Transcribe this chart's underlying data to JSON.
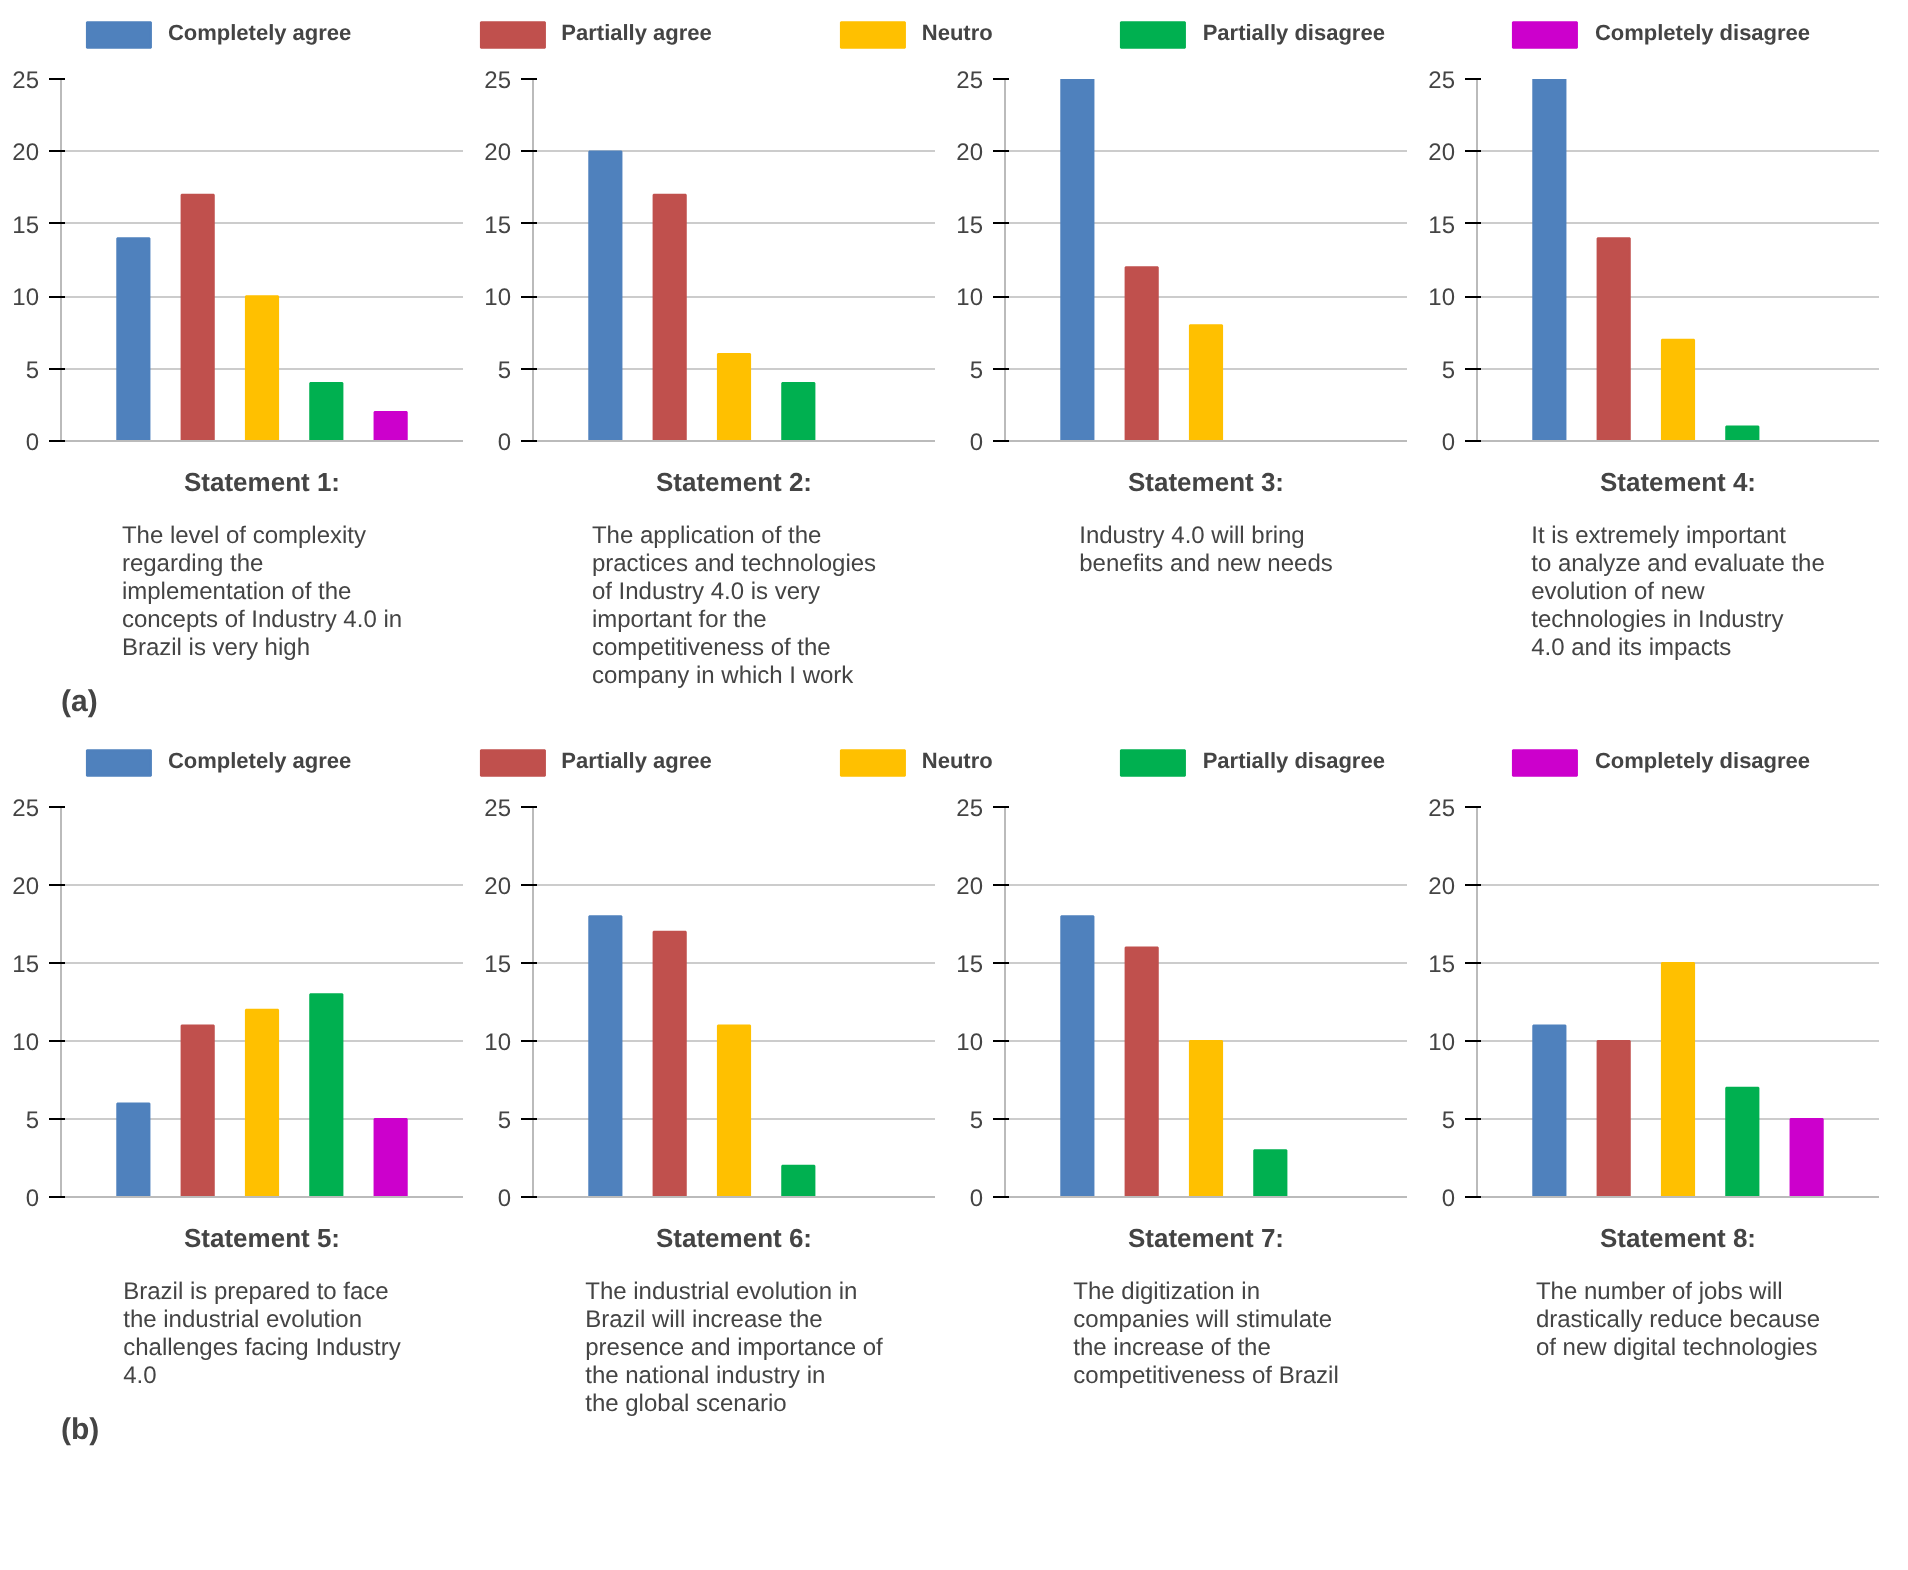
{
  "chart_data": [
    {
      "type": "bar",
      "title": "Statement 1:",
      "subtitle": "The level of complexity regarding the implementation of the concepts of Industry 4.0 in Brazil is very high",
      "categories": [
        null
      ],
      "legend": "top",
      "grid": "y",
      "ylim": [
        0,
        25
      ],
      "yticks": [
        0,
        5,
        10,
        15,
        20,
        25
      ],
      "annotations": [
        "(a)"
      ],
      "series": [
        {
          "name": "Completely agree",
          "color": "#4f81bd",
          "values": [
            14
          ]
        },
        {
          "name": "Partially agree",
          "color": "#c0504d",
          "values": [
            17
          ]
        },
        {
          "name": "Neutro",
          "color": "#ffc000",
          "values": [
            10
          ]
        },
        {
          "name": "Partially disagree",
          "color": "#00b050",
          "values": [
            4
          ]
        },
        {
          "name": "Completely disagree",
          "color": "#cc00cc",
          "values": [
            2
          ]
        }
      ]
    },
    {
      "type": "bar",
      "title": "Statement 2:",
      "subtitle": "The application of the practices and technologies of Industry 4.0 is very important for the competitiveness of the company in which I work",
      "categories": [
        null
      ],
      "grid": "y",
      "ylim": [
        0,
        25
      ],
      "yticks": [
        0,
        5,
        10,
        15,
        20,
        25
      ],
      "series": [
        {
          "color": "#4f81bd",
          "values": [
            20
          ]
        },
        {
          "color": "#c0504d",
          "values": [
            17
          ]
        },
        {
          "color": "#ffc000",
          "values": [
            6
          ]
        },
        {
          "color": "#00b050",
          "values": [
            4
          ]
        },
        {
          "color": "#cc00cc",
          "values": [
            0
          ]
        }
      ]
    },
    {
      "type": "bar",
      "title": "Statement 3:",
      "subtitle": "Industry 4.0 will bring benefits and new needs",
      "categories": [
        null
      ],
      "grid": "y",
      "ylim": [
        0,
        25
      ],
      "yticks": [
        0,
        5,
        10,
        15,
        20,
        25
      ],
      "series": [
        {
          "color": "#4f81bd",
          "values": [
            25
          ]
        },
        {
          "color": "#c0504d",
          "values": [
            12
          ]
        },
        {
          "color": "#ffc000",
          "values": [
            8
          ]
        },
        {
          "color": "#00b050",
          "values": [
            0
          ]
        },
        {
          "color": "#cc00cc",
          "values": [
            0
          ]
        }
      ]
    },
    {
      "type": "bar",
      "title": "Statement 4:",
      "subtitle": "It is extremely important to analyze and evaluate the evolution of new technologies in Industry 4.0 and its impacts",
      "categories": [
        null
      ],
      "grid": "y",
      "ylim": [
        0,
        25
      ],
      "yticks": [
        0,
        5,
        10,
        15,
        20,
        25
      ],
      "series": [
        {
          "color": "#4f81bd",
          "values": [
            25
          ]
        },
        {
          "color": "#c0504d",
          "values": [
            14
          ]
        },
        {
          "color": "#ffc000",
          "values": [
            7
          ]
        },
        {
          "color": "#00b050",
          "values": [
            1
          ]
        },
        {
          "color": "#cc00cc",
          "values": [
            0
          ]
        }
      ]
    },
    {
      "type": "bar",
      "title": "Statement 5:",
      "subtitle": "Brazil is prepared to face the industrial evolution challenges facing Industry 4.0",
      "categories": [
        null
      ],
      "legend": "top",
      "grid": "y",
      "ylim": [
        0,
        25
      ],
      "yticks": [
        0,
        5,
        10,
        15,
        20,
        25
      ],
      "annotations": [
        "(b)"
      ],
      "series": [
        {
          "name": "Completely agree",
          "color": "#4f81bd",
          "values": [
            6
          ]
        },
        {
          "name": "Partially agree",
          "color": "#c0504d",
          "values": [
            11
          ]
        },
        {
          "name": "Neutro",
          "color": "#ffc000",
          "values": [
            12
          ]
        },
        {
          "name": "Partially disagree",
          "color": "#00b050",
          "values": [
            13
          ]
        },
        {
          "name": "Completely disagree",
          "color": "#cc00cc",
          "values": [
            5
          ]
        }
      ]
    },
    {
      "type": "bar",
      "title": "Statement 6:",
      "subtitle": "The industrial evolution in Brazil will increase the presence and importance of the national industry in the global scenario",
      "categories": [
        null
      ],
      "grid": "y",
      "ylim": [
        0,
        25
      ],
      "yticks": [
        0,
        5,
        10,
        15,
        20,
        25
      ],
      "series": [
        {
          "color": "#4f81bd",
          "values": [
            18
          ]
        },
        {
          "color": "#c0504d",
          "values": [
            17
          ]
        },
        {
          "color": "#ffc000",
          "values": [
            11
          ]
        },
        {
          "color": "#00b050",
          "values": [
            2
          ]
        },
        {
          "color": "#cc00cc",
          "values": [
            0
          ]
        }
      ]
    },
    {
      "type": "bar",
      "title": "Statement 7:",
      "subtitle": "The digitization in companies will stimulate the increase of the competitiveness of Brazil",
      "categories": [
        null
      ],
      "grid": "y",
      "ylim": [
        0,
        25
      ],
      "yticks": [
        0,
        5,
        10,
        15,
        20,
        25
      ],
      "series": [
        {
          "color": "#4f81bd",
          "values": [
            18
          ]
        },
        {
          "color": "#c0504d",
          "values": [
            16
          ]
        },
        {
          "color": "#ffc000",
          "values": [
            10
          ]
        },
        {
          "color": "#00b050",
          "values": [
            3
          ]
        },
        {
          "color": "#cc00cc",
          "values": [
            0
          ]
        }
      ]
    },
    {
      "type": "bar",
      "title": "Statement 8:",
      "subtitle": "The number of jobs will drastically reduce because of new digital technologies",
      "categories": [
        null
      ],
      "grid": "y",
      "ylim": [
        0,
        25
      ],
      "yticks": [
        0,
        5,
        10,
        15,
        20,
        25
      ],
      "series": [
        {
          "color": "#4f81bd",
          "values": [
            11
          ]
        },
        {
          "color": "#c0504d",
          "values": [
            10
          ]
        },
        {
          "color": "#ffc000",
          "values": [
            15
          ]
        },
        {
          "color": "#00b050",
          "values": [
            7
          ]
        },
        {
          "color": "#cc00cc",
          "values": [
            5
          ]
        }
      ]
    }
  ]
}
